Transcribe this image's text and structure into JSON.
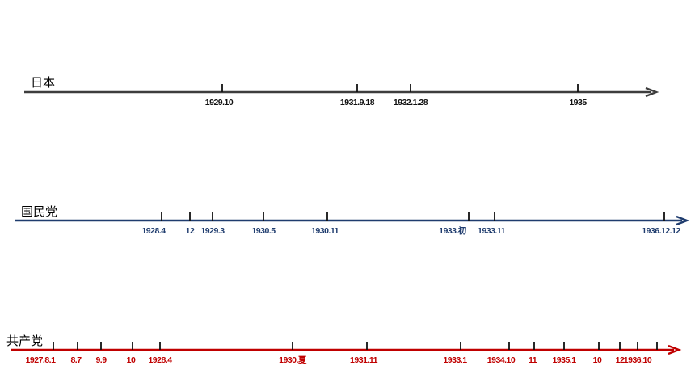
{
  "timelines": [
    {
      "id": "japan",
      "label": "日本",
      "color": "#3d3d3d",
      "events": [
        "1929.10",
        "1931.9.18",
        "1932.1.28",
        "1935"
      ]
    },
    {
      "id": "kmt",
      "label": "国民党",
      "color": "#1f3c6e",
      "events": [
        "1928.4",
        "12",
        "1929.3",
        "1930.5",
        "1930.11",
        "1933.初",
        "1933.11",
        "1936.12.12"
      ]
    },
    {
      "id": "cpc",
      "label": "共产党",
      "color": "#c00000",
      "events": [
        "1927.8.1",
        "8.7",
        "9.9",
        "10",
        "1928.4",
        "1930.夏",
        "1931.11",
        "1933.1",
        "1934.10",
        "11",
        "1935.1",
        "10",
        "12",
        "1936.10"
      ]
    }
  ]
}
